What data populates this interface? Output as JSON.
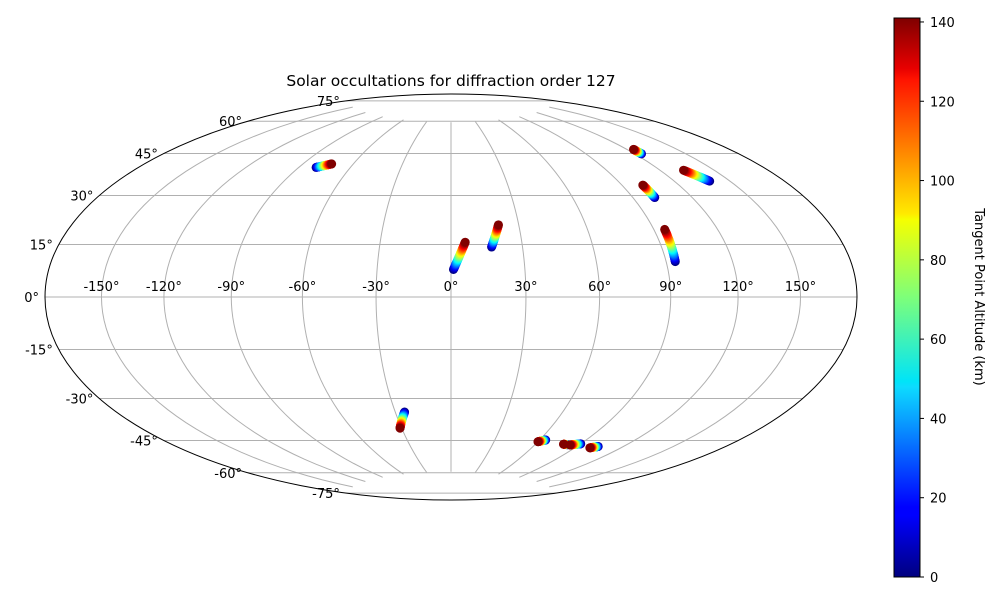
{
  "chart_data": {
    "type": "scatter",
    "projection": "hammer",
    "title": "Solar occultations for diffraction order 127",
    "grid": true,
    "lon_ticks": [
      "-150°",
      "-120°",
      "-90°",
      "-60°",
      "-30°",
      "0°",
      "30°",
      "60°",
      "90°",
      "120°",
      "150°"
    ],
    "lon_tick_values": [
      -150,
      -120,
      -90,
      -60,
      -30,
      0,
      30,
      60,
      90,
      120,
      150
    ],
    "lat_ticks": [
      "75°",
      "60°",
      "45°",
      "30°",
      "15°",
      "0°",
      "-15°",
      "-30°",
      "-45°",
      "-60°",
      "-75°"
    ],
    "lat_tick_values": [
      75,
      60,
      45,
      30,
      15,
      0,
      -15,
      -30,
      -45,
      -60,
      -75
    ],
    "colorbar": {
      "label": "Tangent Point Altitude (km)",
      "range": [
        0,
        141
      ],
      "ticks": [
        "0",
        "20",
        "40",
        "60",
        "80",
        "100",
        "120",
        "140"
      ],
      "tick_values": [
        0,
        20,
        40,
        60,
        80,
        100,
        120,
        140
      ],
      "colormap": "jet"
    },
    "series": [
      {
        "lon_start": -80,
        "lat_start": 51,
        "lon_end": -73,
        "lat_end": 53
      },
      {
        "lon_start": 1,
        "lat_start": 11,
        "lon_end": 6,
        "lat_end": 22
      },
      {
        "lon_start": 17,
        "lat_start": 20,
        "lon_end": 21,
        "lat_end": 29
      },
      {
        "lon_start": 101,
        "lat_start": 37,
        "lon_end": 101,
        "lat_end": 42
      },
      {
        "lon_start": 94,
        "lat_start": 13,
        "lon_end": 95,
        "lat_end": 25
      },
      {
        "lon_start": 124,
        "lat_start": 53,
        "lon_end": 124,
        "lat_end": 55
      },
      {
        "lon_start": 139,
        "lat_start": 40,
        "lon_end": 133,
        "lat_end": 45
      },
      {
        "lon_start": -25,
        "lat_start": -47,
        "lon_end": -31,
        "lat_end": -54
      },
      {
        "lon_start": 64,
        "lat_start": -58,
        "lon_end": 60,
        "lat_end": -59
      },
      {
        "lon_start": 82,
        "lat_start": -59,
        "lon_end": 79,
        "lat_end": -59
      },
      {
        "lon_start": 90,
        "lat_start": -58,
        "lon_end": 84,
        "lat_end": -59
      },
      {
        "lon_start": 104,
        "lat_start": -58,
        "lon_end": 100,
        "lat_end": -59
      }
    ]
  }
}
